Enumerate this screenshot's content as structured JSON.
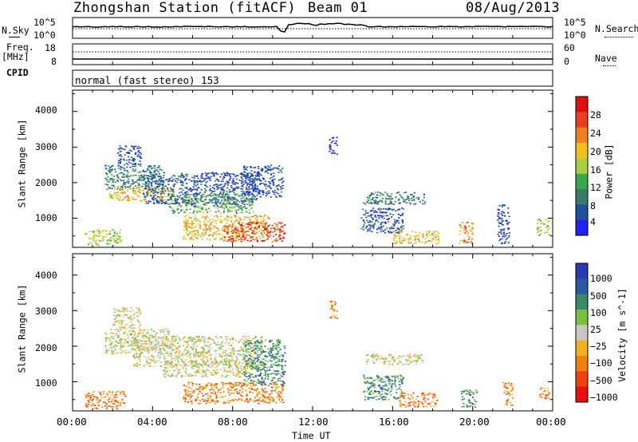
{
  "header": {
    "station_title": "Zhongshan Station (fitACF)",
    "beam": "Beam 01",
    "date": "08/Aug/2013"
  },
  "noise_panel": {
    "left_label": "N.Sky",
    "right_label": "N.Search",
    "left_ticks": [
      "10^5",
      "10^0"
    ],
    "right_ticks": [
      "10^5",
      "10^0"
    ]
  },
  "freq_panel": {
    "left_label_1": "Freq.",
    "left_label_2": "[MHz]",
    "right_label": "Nave",
    "left_ticks": [
      "18",
      "8"
    ],
    "right_ticks": [
      "60",
      "0"
    ]
  },
  "cpid_panel": {
    "label": "CPID",
    "mode_text": "normal (fast stereo) 153"
  },
  "colors": {
    "power": [
      "#2222ee",
      "#1f4fa0",
      "#3a7a6a",
      "#3aa84a",
      "#a8d040",
      "#f0c020",
      "#f08020",
      "#e84020",
      "#e01010"
    ],
    "velocity": [
      "#2a3ab0",
      "#2a5aa0",
      "#3a8a6a",
      "#7ac040",
      "#c8c8c0",
      "#f0b020",
      "#f08010",
      "#f04010",
      "#e81010"
    ]
  },
  "chart_data": [
    {
      "type": "heatmap",
      "title": "",
      "xlabel": "Time UT",
      "ylabel": "Slant Range [km]",
      "x_ticks": [
        "00:00",
        "04:00",
        "08:00",
        "12:00",
        "16:00",
        "20:00",
        "00:00"
      ],
      "xlim_hours": [
        0,
        24
      ],
      "y_ticks": [
        "1000",
        "2000",
        "3000",
        "4000"
      ],
      "ylim": [
        180,
        4600
      ],
      "colorbar": {
        "label": "Power [dB]",
        "ticks": [
          "4",
          "8",
          "12",
          "16",
          "20",
          "24",
          "28"
        ],
        "range": [
          0,
          30
        ]
      },
      "regions": [
        {
          "t0": 0.6,
          "t1": 2.4,
          "r0": 250,
          "r1": 700,
          "level": 4
        },
        {
          "t0": 1.6,
          "t1": 4.5,
          "r0": 1800,
          "r1": 2500,
          "level": 2
        },
        {
          "t0": 1.8,
          "t1": 5.0,
          "r0": 1500,
          "r1": 1900,
          "level": 5
        },
        {
          "t0": 2.2,
          "t1": 3.4,
          "r0": 2500,
          "r1": 3050,
          "level": 1
        },
        {
          "t0": 3.5,
          "t1": 9.2,
          "r0": 1400,
          "r1": 2300,
          "level": 1
        },
        {
          "t0": 4.8,
          "t1": 9.0,
          "r0": 1150,
          "r1": 1700,
          "level": 3
        },
        {
          "t0": 5.5,
          "t1": 9.8,
          "r0": 400,
          "r1": 1100,
          "level": 5
        },
        {
          "t0": 7.5,
          "t1": 10.6,
          "r0": 350,
          "r1": 900,
          "level": 7
        },
        {
          "t0": 8.5,
          "t1": 10.5,
          "r0": 1600,
          "r1": 2500,
          "level": 1
        },
        {
          "t0": 12.8,
          "t1": 13.2,
          "r0": 2800,
          "r1": 3300,
          "level": 0
        },
        {
          "t0": 14.5,
          "t1": 17.6,
          "r0": 1400,
          "r1": 1750,
          "level": 2
        },
        {
          "t0": 14.4,
          "t1": 16.5,
          "r0": 600,
          "r1": 1300,
          "level": 1
        },
        {
          "t0": 16.0,
          "t1": 18.3,
          "r0": 300,
          "r1": 650,
          "level": 5
        },
        {
          "t0": 19.3,
          "t1": 20.0,
          "r0": 300,
          "r1": 900,
          "level": 6
        },
        {
          "t0": 21.2,
          "t1": 21.8,
          "r0": 300,
          "r1": 1400,
          "level": 1
        },
        {
          "t0": 23.2,
          "t1": 23.8,
          "r0": 500,
          "r1": 1000,
          "level": 4
        }
      ]
    },
    {
      "type": "heatmap",
      "title": "",
      "xlabel": "Time UT",
      "ylabel": "Slant Range [km]",
      "x_ticks": [
        "00:00",
        "04:00",
        "08:00",
        "12:00",
        "16:00",
        "20:00",
        "00:00"
      ],
      "xlim_hours": [
        0,
        24
      ],
      "y_ticks": [
        "1000",
        "2000",
        "3000",
        "4000"
      ],
      "ylim": [
        180,
        4600
      ],
      "colorbar": {
        "label": "Velocity [m s^-1]",
        "ticks": [
          "1000",
          "500",
          "100",
          "25",
          "−25",
          "−100",
          "−500",
          "−1000"
        ],
        "range": [
          -1200,
          1200
        ]
      },
      "regions": [
        {
          "t0": 0.6,
          "t1": 2.6,
          "r0": 250,
          "r1": 750,
          "level": 6
        },
        {
          "t0": 1.6,
          "t1": 5.0,
          "r0": 1800,
          "r1": 2500,
          "level": 4
        },
        {
          "t0": 2.0,
          "t1": 3.4,
          "r0": 2500,
          "r1": 3100,
          "level": 4
        },
        {
          "t0": 3.0,
          "t1": 9.5,
          "r0": 1450,
          "r1": 2300,
          "level": 4
        },
        {
          "t0": 4.5,
          "t1": 9.0,
          "r0": 1150,
          "r1": 1600,
          "level": 4
        },
        {
          "t0": 5.5,
          "t1": 10.5,
          "r0": 400,
          "r1": 1000,
          "level": 6
        },
        {
          "t0": 8.5,
          "t1": 10.6,
          "r0": 900,
          "r1": 2200,
          "level": 2
        },
        {
          "t0": 12.8,
          "t1": 13.2,
          "r0": 2800,
          "r1": 3300,
          "level": 6
        },
        {
          "t0": 14.6,
          "t1": 17.5,
          "r0": 1500,
          "r1": 1800,
          "level": 4
        },
        {
          "t0": 14.5,
          "t1": 16.5,
          "r0": 500,
          "r1": 1200,
          "level": 2
        },
        {
          "t0": 16.3,
          "t1": 18.2,
          "r0": 300,
          "r1": 700,
          "level": 6
        },
        {
          "t0": 19.4,
          "t1": 20.2,
          "r0": 300,
          "r1": 800,
          "level": 2
        },
        {
          "t0": 21.5,
          "t1": 22.0,
          "r0": 350,
          "r1": 1000,
          "level": 6
        },
        {
          "t0": 23.3,
          "t1": 23.8,
          "r0": 500,
          "r1": 900,
          "level": 6
        }
      ]
    }
  ]
}
